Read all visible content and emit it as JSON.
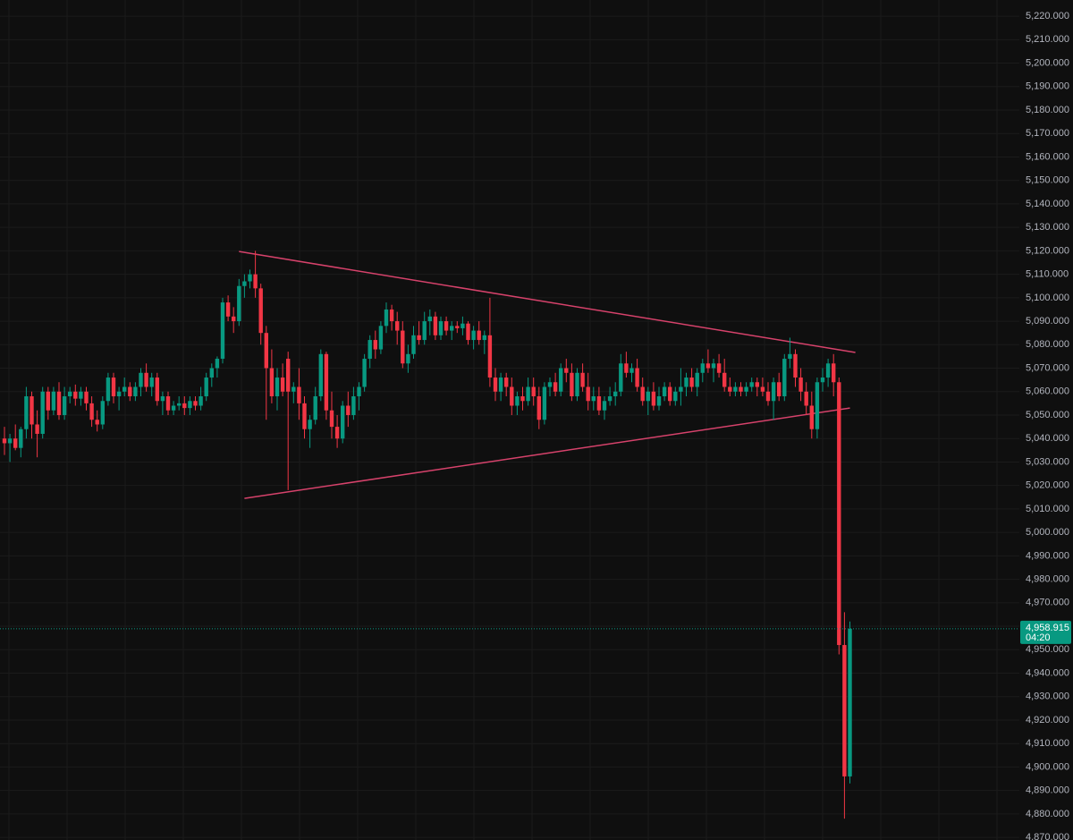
{
  "chart_data": {
    "type": "candlestick",
    "up_color": "#089981",
    "down_color": "#f23645",
    "grid": true,
    "ylim": [
      4868.9,
      5226.9
    ],
    "yticks": [
      {
        "value": 5220,
        "label": "5,220.000"
      },
      {
        "value": 5210,
        "label": "5,210.000"
      },
      {
        "value": 5200,
        "label": "5,200.000"
      },
      {
        "value": 5190,
        "label": "5,190.000"
      },
      {
        "value": 5180,
        "label": "5,180.000"
      },
      {
        "value": 5170,
        "label": "5,170.000"
      },
      {
        "value": 5160,
        "label": "5,160.000"
      },
      {
        "value": 5150,
        "label": "5,150.000"
      },
      {
        "value": 5140,
        "label": "5,140.000"
      },
      {
        "value": 5130,
        "label": "5,130.000"
      },
      {
        "value": 5120,
        "label": "5,120.000"
      },
      {
        "value": 5110,
        "label": "5,110.000"
      },
      {
        "value": 5100,
        "label": "5,100.000"
      },
      {
        "value": 5090,
        "label": "5,090.000"
      },
      {
        "value": 5080,
        "label": "5,080.000"
      },
      {
        "value": 5070,
        "label": "5,070.000"
      },
      {
        "value": 5060,
        "label": "5,060.000"
      },
      {
        "value": 5050,
        "label": "5,050.000"
      },
      {
        "value": 5040,
        "label": "5,040.000"
      },
      {
        "value": 5030,
        "label": "5,030.000"
      },
      {
        "value": 5020,
        "label": "5,020.000"
      },
      {
        "value": 5010,
        "label": "5,010.000"
      },
      {
        "value": 5000,
        "label": "5,000.000"
      },
      {
        "value": 4990,
        "label": "4,990.000"
      },
      {
        "value": 4980,
        "label": "4,980.000"
      },
      {
        "value": 4970,
        "label": "4,970.000"
      },
      {
        "value": 4960,
        "label": "4,960.000"
      },
      {
        "value": 4950,
        "label": "4,950.000"
      },
      {
        "value": 4940,
        "label": "4,940.000"
      },
      {
        "value": 4930,
        "label": "4,930.000"
      },
      {
        "value": 4920,
        "label": "4,920.000"
      },
      {
        "value": 4910,
        "label": "4,910.000"
      },
      {
        "value": 4900,
        "label": "4,900.000"
      },
      {
        "value": 4890,
        "label": "4,890.000"
      },
      {
        "value": 4880,
        "label": "4,880.000"
      },
      {
        "value": 4870,
        "label": "4,870.000"
      }
    ],
    "last_price": {
      "value": 4958.915,
      "label": "4,958.915",
      "countdown": "04:20",
      "color": "#089981"
    },
    "trendlines": [
      {
        "x": [
          43,
          156
        ],
        "y": [
          5119.7,
          5076.7
        ],
        "color": "#d6426b"
      },
      {
        "x": [
          44,
          155
        ],
        "y": [
          5014.5,
          5053
        ],
        "color": "#d6426b"
      }
    ],
    "ohlc": [
      [
        5040,
        5045,
        5033,
        5038
      ],
      [
        5038,
        5042,
        5030,
        5040
      ],
      [
        5040,
        5046,
        5035,
        5036
      ],
      [
        5036,
        5045,
        5032,
        5044
      ],
      [
        5044,
        5062,
        5040,
        5058
      ],
      [
        5058,
        5060,
        5040,
        5046
      ],
      [
        5046,
        5052,
        5032,
        5042
      ],
      [
        5042,
        5062,
        5040,
        5060
      ],
      [
        5060,
        5062,
        5048,
        5052
      ],
      [
        5052,
        5062,
        5050,
        5060
      ],
      [
        5060,
        5064,
        5048,
        5050
      ],
      [
        5050,
        5062,
        5048,
        5058
      ],
      [
        5058,
        5062,
        5055,
        5060
      ],
      [
        5060,
        5063,
        5054,
        5057
      ],
      [
        5057,
        5062,
        5054,
        5060
      ],
      [
        5060,
        5062,
        5052,
        5055
      ],
      [
        5055,
        5058,
        5045,
        5048
      ],
      [
        5048,
        5052,
        5043,
        5046
      ],
      [
        5046,
        5058,
        5044,
        5056
      ],
      [
        5056,
        5068,
        5054,
        5066
      ],
      [
        5066,
        5068,
        5055,
        5058
      ],
      [
        5058,
        5062,
        5052,
        5060
      ],
      [
        5060,
        5066,
        5058,
        5062
      ],
      [
        5062,
        5064,
        5056,
        5058
      ],
      [
        5058,
        5064,
        5056,
        5062
      ],
      [
        5062,
        5070,
        5058,
        5068
      ],
      [
        5068,
        5072,
        5060,
        5062
      ],
      [
        5062,
        5068,
        5058,
        5066
      ],
      [
        5066,
        5068,
        5054,
        5056
      ],
      [
        5056,
        5060,
        5050,
        5058
      ],
      [
        5058,
        5060,
        5050,
        5052
      ],
      [
        5052,
        5056,
        5050,
        5054
      ],
      [
        5054,
        5058,
        5052,
        5055
      ],
      [
        5055,
        5058,
        5050,
        5053
      ],
      [
        5053,
        5058,
        5050,
        5056
      ],
      [
        5056,
        5058,
        5052,
        5054
      ],
      [
        5054,
        5062,
        5052,
        5058
      ],
      [
        5058,
        5068,
        5056,
        5066
      ],
      [
        5066,
        5072,
        5062,
        5070
      ],
      [
        5070,
        5075,
        5066,
        5074
      ],
      [
        5074,
        5100,
        5072,
        5098
      ],
      [
        5098,
        5101,
        5090,
        5092
      ],
      [
        5092,
        5096,
        5085,
        5090
      ],
      [
        5090,
        5108,
        5088,
        5105
      ],
      [
        5105,
        5110,
        5100,
        5107
      ],
      [
        5107,
        5112,
        5104,
        5110
      ],
      [
        5110,
        5120,
        5100,
        5104
      ],
      [
        5104,
        5106,
        5080,
        5085
      ],
      [
        5085,
        5088,
        5048,
        5070
      ],
      [
        5070,
        5078,
        5055,
        5058
      ],
      [
        5058,
        5070,
        5052,
        5066
      ],
      [
        5066,
        5072,
        5058,
        5060
      ],
      [
        5074,
        5077,
        5018,
        5060
      ],
      [
        5060,
        5064,
        5055,
        5062
      ],
      [
        5062,
        5070,
        5048,
        5055
      ],
      [
        5055,
        5058,
        5040,
        5044
      ],
      [
        5044,
        5050,
        5036,
        5048
      ],
      [
        5048,
        5062,
        5046,
        5058
      ],
      [
        5058,
        5078,
        5056,
        5076
      ],
      [
        5076,
        5077,
        5048,
        5052
      ],
      [
        5052,
        5060,
        5040,
        5045
      ],
      [
        5045,
        5050,
        5036,
        5040
      ],
      [
        5040,
        5056,
        5038,
        5054
      ],
      [
        5054,
        5060,
        5045,
        5050
      ],
      [
        5050,
        5062,
        5048,
        5058
      ],
      [
        5058,
        5064,
        5052,
        5062
      ],
      [
        5062,
        5076,
        5060,
        5074
      ],
      [
        5074,
        5084,
        5070,
        5082
      ],
      [
        5082,
        5086,
        5074,
        5078
      ],
      [
        5078,
        5090,
        5076,
        5088
      ],
      [
        5088,
        5098,
        5085,
        5095
      ],
      [
        5095,
        5097,
        5086,
        5090
      ],
      [
        5090,
        5094,
        5080,
        5086
      ],
      [
        5086,
        5090,
        5070,
        5072
      ],
      [
        5072,
        5080,
        5068,
        5076
      ],
      [
        5076,
        5088,
        5074,
        5084
      ],
      [
        5084,
        5090,
        5080,
        5082
      ],
      [
        5082,
        5094,
        5080,
        5090
      ],
      [
        5090,
        5095,
        5084,
        5092
      ],
      [
        5092,
        5094,
        5082,
        5084
      ],
      [
        5084,
        5092,
        5082,
        5090
      ],
      [
        5090,
        5092,
        5084,
        5086
      ],
      [
        5086,
        5090,
        5082,
        5088
      ],
      [
        5088,
        5090,
        5085,
        5087
      ],
      [
        5087,
        5092,
        5084,
        5089
      ],
      [
        5089,
        5090,
        5080,
        5082
      ],
      [
        5082,
        5088,
        5078,
        5086
      ],
      [
        5086,
        5090,
        5080,
        5082
      ],
      [
        5082,
        5086,
        5076,
        5084
      ],
      [
        5084,
        5100,
        5062,
        5066
      ],
      [
        5066,
        5070,
        5056,
        5060
      ],
      [
        5060,
        5068,
        5056,
        5066
      ],
      [
        5066,
        5068,
        5058,
        5062
      ],
      [
        5062,
        5066,
        5050,
        5054
      ],
      [
        5054,
        5060,
        5050,
        5058
      ],
      [
        5058,
        5062,
        5052,
        5056
      ],
      [
        5056,
        5066,
        5054,
        5062
      ],
      [
        5062,
        5066,
        5054,
        5058
      ],
      [
        5058,
        5062,
        5044,
        5048
      ],
      [
        5048,
        5064,
        5046,
        5062
      ],
      [
        5062,
        5066,
        5058,
        5064
      ],
      [
        5064,
        5068,
        5058,
        5060
      ],
      [
        5060,
        5072,
        5058,
        5070
      ],
      [
        5070,
        5074,
        5064,
        5068
      ],
      [
        5068,
        5072,
        5056,
        5058
      ],
      [
        5058,
        5070,
        5056,
        5068
      ],
      [
        5068,
        5072,
        5060,
        5062
      ],
      [
        5062,
        5068,
        5052,
        5056
      ],
      [
        5056,
        5062,
        5052,
        5058
      ],
      [
        5058,
        5062,
        5050,
        5052
      ],
      [
        5052,
        5058,
        5048,
        5056
      ],
      [
        5056,
        5062,
        5054,
        5058
      ],
      [
        5058,
        5064,
        5054,
        5060
      ],
      [
        5060,
        5076,
        5058,
        5072
      ],
      [
        5072,
        5077,
        5066,
        5068
      ],
      [
        5068,
        5072,
        5064,
        5070
      ],
      [
        5070,
        5074,
        5060,
        5062
      ],
      [
        5062,
        5066,
        5054,
        5056
      ],
      [
        5056,
        5062,
        5050,
        5060
      ],
      [
        5060,
        5064,
        5052,
        5054
      ],
      [
        5054,
        5062,
        5052,
        5058
      ],
      [
        5058,
        5064,
        5056,
        5062
      ],
      [
        5062,
        5064,
        5054,
        5056
      ],
      [
        5056,
        5062,
        5054,
        5060
      ],
      [
        5060,
        5070,
        5054,
        5062
      ],
      [
        5062,
        5068,
        5058,
        5066
      ],
      [
        5066,
        5070,
        5060,
        5062
      ],
      [
        5062,
        5070,
        5058,
        5068
      ],
      [
        5068,
        5074,
        5064,
        5072
      ],
      [
        5072,
        5078,
        5068,
        5070
      ],
      [
        5070,
        5074,
        5064,
        5072
      ],
      [
        5072,
        5076,
        5066,
        5068
      ],
      [
        5068,
        5074,
        5060,
        5062
      ],
      [
        5062,
        5066,
        5058,
        5060
      ],
      [
        5060,
        5064,
        5058,
        5062
      ],
      [
        5062,
        5064,
        5058,
        5060
      ],
      [
        5060,
        5064,
        5058,
        5062
      ],
      [
        5062,
        5066,
        5060,
        5064
      ],
      [
        5064,
        5066,
        5058,
        5062
      ],
      [
        5062,
        5066,
        5058,
        5060
      ],
      [
        5060,
        5064,
        5054,
        5056
      ],
      [
        5056,
        5066,
        5048,
        5064
      ],
      [
        5064,
        5068,
        5056,
        5058
      ],
      [
        5058,
        5076,
        5056,
        5074
      ],
      [
        5074,
        5083,
        5070,
        5076
      ],
      [
        5076,
        5078,
        5062,
        5066
      ],
      [
        5066,
        5070,
        5056,
        5060
      ],
      [
        5060,
        5064,
        5050,
        5054
      ],
      [
        5054,
        5060,
        5040,
        5044
      ],
      [
        5044,
        5066,
        5040,
        5064
      ],
      [
        5064,
        5070,
        5060,
        5066
      ],
      [
        5066,
        5074,
        5062,
        5072
      ],
      [
        5072,
        5076,
        5058,
        5064
      ],
      [
        5064,
        5066,
        4948,
        4952
      ],
      [
        4952,
        4966,
        4878,
        4896
      ],
      [
        4896,
        4962,
        4893,
        4958.915
      ]
    ]
  }
}
